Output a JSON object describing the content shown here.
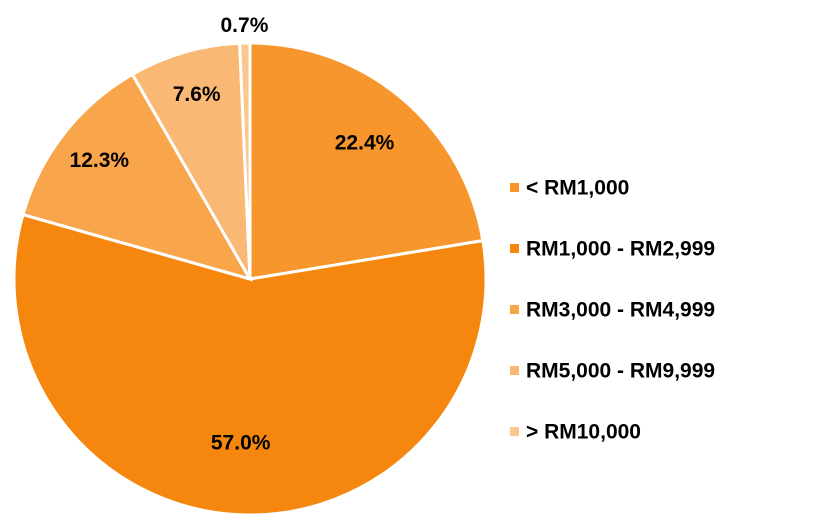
{
  "chart_data": {
    "type": "pie",
    "categories": [
      "< RM1,000",
      "RM1,000 - RM2,999",
      "RM3,000 - RM4,999",
      "RM5,000 - RM9,999",
      "> RM10,000"
    ],
    "values": [
      22.4,
      57.0,
      12.3,
      7.6,
      0.7
    ],
    "value_labels": [
      "22.4%",
      "57.0%",
      "12.3%",
      "7.6%",
      "0.7%"
    ],
    "colors": [
      "#f7962c",
      "#f5870e",
      "#f8a54b",
      "#f9b874",
      "#fbc78c"
    ],
    "legend": "right"
  }
}
